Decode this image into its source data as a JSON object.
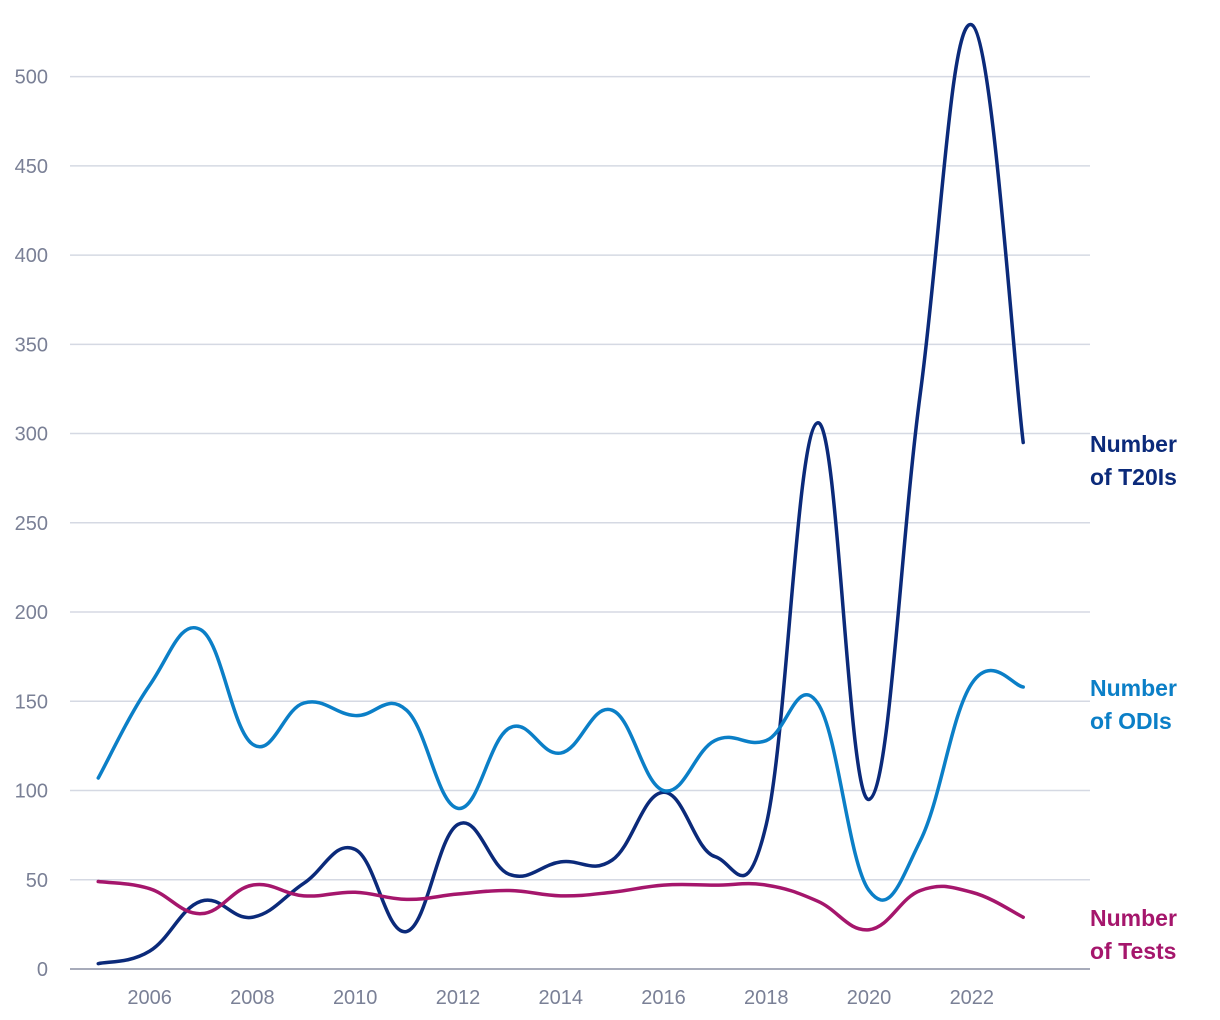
{
  "chart_data": {
    "type": "line",
    "title": "",
    "xlabel": "",
    "ylabel": "",
    "x": [
      2005,
      2006,
      2007,
      2008,
      2009,
      2010,
      2011,
      2012,
      2013,
      2014,
      2015,
      2016,
      2017,
      2018,
      2019,
      2020,
      2021,
      2022,
      2023
    ],
    "xlim": [
      2004.45,
      2024.3
    ],
    "ylim": [
      0,
      530
    ],
    "x_ticks": [
      "2006",
      "2008",
      "2010",
      "2012",
      "2014",
      "2016",
      "2018",
      "2020",
      "2022"
    ],
    "y_ticks": [
      "0",
      "50",
      "100",
      "150",
      "200",
      "250",
      "300",
      "350",
      "400",
      "450",
      "500"
    ],
    "grid": true,
    "series": [
      {
        "name": "Number of T20Is",
        "label_lines": [
          "Number",
          "of T20Is"
        ],
        "color": "#0b2a7a",
        "values": [
          3,
          10,
          38,
          29,
          48,
          67,
          21,
          81,
          53,
          60,
          61,
          99,
          63,
          81,
          306,
          95,
          323,
          529,
          295
        ]
      },
      {
        "name": "Number of ODIs",
        "label_lines": [
          "Number",
          "of ODIs"
        ],
        "color": "#0b7fc7",
        "values": [
          107,
          159,
          190,
          126,
          149,
          142,
          145,
          90,
          135,
          121,
          145,
          100,
          128,
          128,
          149,
          44,
          72,
          160,
          158
        ]
      },
      {
        "name": "Number of Tests",
        "label_lines": [
          "Number",
          "of Tests"
        ],
        "color": "#a5166c",
        "values": [
          49,
          45,
          31,
          47,
          41,
          43,
          39,
          42,
          44,
          41,
          43,
          47,
          47,
          47,
          38,
          22,
          44,
          43,
          29
        ]
      }
    ]
  }
}
